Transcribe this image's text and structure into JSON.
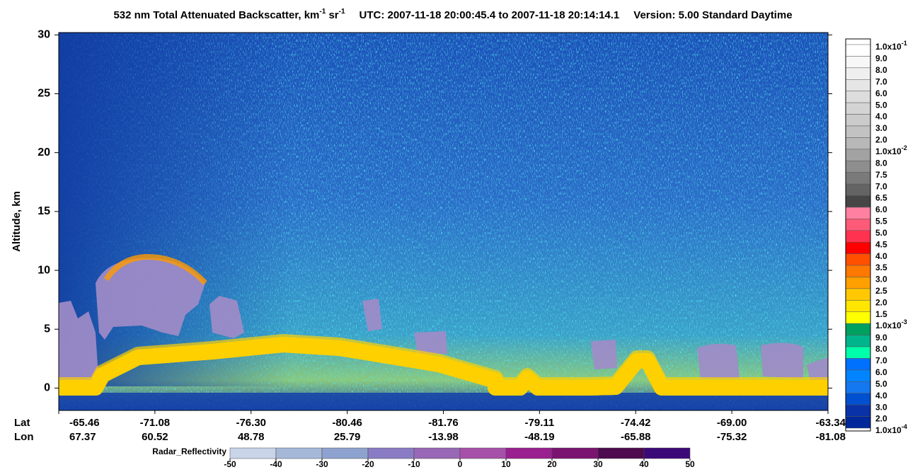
{
  "chart_data": {
    "type": "heatmap",
    "title": [
      "532 nm Total Attenuated Backscatter, km",
      "-1",
      " sr",
      "-1"
    ],
    "time_range": "UTC:  2007-11-18 20:00:45.4  to  2007-11-18 20:14:14.1",
    "version": "Version: 5.00  Standard  Daytime",
    "y_label": "Altitude, km",
    "ylim": [
      -1.9,
      30.2
    ],
    "yticks": [
      0,
      5,
      10,
      15,
      20,
      25,
      30
    ],
    "x_rows": [
      {
        "name": "Lat",
        "labels": [
          "-65.46",
          "-71.08",
          "-76.30",
          "-80.46",
          "-81.76",
          "-79.11",
          "-74.42",
          "-69.00",
          "-63.34"
        ]
      },
      {
        "name": "Lon",
        "labels": [
          "67.37",
          "60.52",
          "48.78",
          "25.79",
          "-13.98",
          "-48.19",
          "-65.88",
          "-75.32",
          "-81.08"
        ]
      }
    ],
    "colorbar": {
      "labels": [
        {
          "base": "1.0x10",
          "exp": "-1"
        },
        "9.0",
        "8.0",
        "7.0",
        "6.0",
        "5.0",
        "4.0",
        "3.0",
        "2.0",
        {
          "base": "1.0x10",
          "exp": "-2"
        },
        "8.0",
        "7.5",
        "7.0",
        "6.5",
        "6.0",
        "5.5",
        "5.0",
        "4.5",
        "4.0",
        "3.5",
        "3.0",
        "2.5",
        "2.0",
        "1.5",
        {
          "base": "1.0x10",
          "exp": "-3"
        },
        "9.0",
        "8.0",
        "7.0",
        "6.0",
        "5.0",
        "4.0",
        "3.0",
        "2.0",
        {
          "base": "1.0x10",
          "exp": "-4"
        }
      ],
      "colors": [
        "#ffffff",
        "#f7f7f7",
        "#efefef",
        "#e6e6e6",
        "#dddddd",
        "#d4d4d4",
        "#cbcbcb",
        "#c2c2c2",
        "#b8b8b8",
        "#a2a2a2",
        "#8e8e8e",
        "#7a7a7a",
        "#646464",
        "#464646",
        "#ff80a0",
        "#ff5a78",
        "#ff3250",
        "#ff0000",
        "#ff5000",
        "#ff7800",
        "#ffa000",
        "#ffc800",
        "#ffe600",
        "#ffff00",
        "#00a060",
        "#00b48c",
        "#00ffaa",
        "#0070ff",
        "#0084ff",
        "#1478f0",
        "#0050d0",
        "#0a32a8",
        "#00289a"
      ]
    },
    "radar_colorbar": {
      "label": "Radar_Reflectivity",
      "lim": [
        -50,
        50
      ],
      "ticks": [
        -50,
        -40,
        -30,
        -20,
        -10,
        0,
        10,
        20,
        30,
        40,
        50
      ],
      "colors": [
        "#c8d4e8",
        "#a6b8d8",
        "#8ea2cf",
        "#8a7cc4",
        "#9868b6",
        "#a650aa",
        "#9a2090",
        "#7a1470",
        "#4e0a4e",
        "#3c0a78"
      ]
    }
  }
}
